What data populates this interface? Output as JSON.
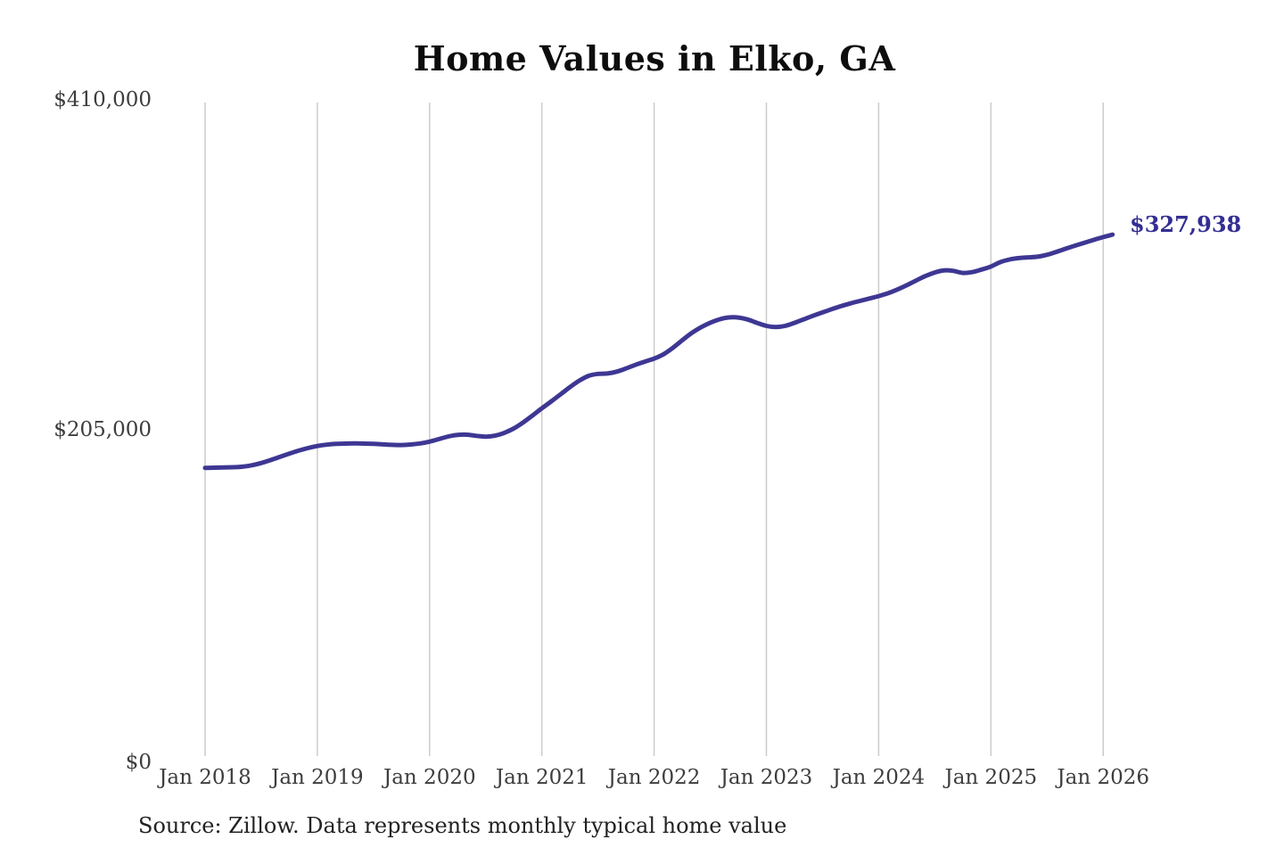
{
  "source_note": "Source: Zillow. Data represents monthly typical home value",
  "chart_data": {
    "type": "line",
    "title": "Home Values in Elko, GA",
    "xlabel": "",
    "ylabel": "",
    "ylim": [
      0,
      410000
    ],
    "grid": "vertical-yearly-only",
    "legend": "none",
    "frequency": "monthly",
    "x_start": "Jan 2018",
    "x_end": "Feb 2026",
    "x_tick_labels": [
      "Jan 2018",
      "Jan 2019",
      "Jan 2020",
      "Jan 2021",
      "Jan 2022",
      "Jan 2023",
      "Jan 2024",
      "Jan 2025",
      "Jan 2026"
    ],
    "y_ticks": [
      {
        "value": 410000,
        "label": "$410,000"
      },
      {
        "value": 205000,
        "label": "$205,000"
      },
      {
        "value": 0,
        "label": "$0"
      }
    ],
    "end_label": "$327,938",
    "end_value": 327938,
    "series": [
      {
        "name": "Typical home value",
        "values": [
          183000,
          183100,
          183200,
          183400,
          183700,
          184600,
          186000,
          187800,
          189800,
          191800,
          193700,
          195300,
          196600,
          197400,
          197900,
          198100,
          198200,
          198100,
          197900,
          197600,
          197300,
          197200,
          197500,
          198200,
          199300,
          200900,
          202500,
          203500,
          203600,
          202900,
          202400,
          203000,
          204800,
          207500,
          211200,
          215500,
          220000,
          224300,
          228700,
          233200,
          237200,
          240200,
          241400,
          241600,
          242800,
          244800,
          247000,
          249000,
          250900,
          253600,
          257600,
          262300,
          266700,
          270300,
          273200,
          275300,
          276500,
          276400,
          275200,
          273100,
          271200,
          270500,
          271200,
          273100,
          275300,
          277500,
          279600,
          281600,
          283500,
          285200,
          286700,
          288200,
          289700,
          291500,
          293800,
          296500,
          299400,
          302200,
          304400,
          305700,
          305400,
          304100,
          304600,
          306200,
          308100,
          310800,
          312500,
          313400,
          313800,
          314200,
          315400,
          317200,
          319200,
          321100,
          322900,
          324700,
          326400,
          327938
        ]
      }
    ],
    "colors": {
      "line": "#3e3793",
      "end_label": "#332e93",
      "grid": "#cccccc",
      "tick_text": "#3d3d3d",
      "title_text": "#0d0d0d",
      "source_text": "#222222"
    }
  }
}
